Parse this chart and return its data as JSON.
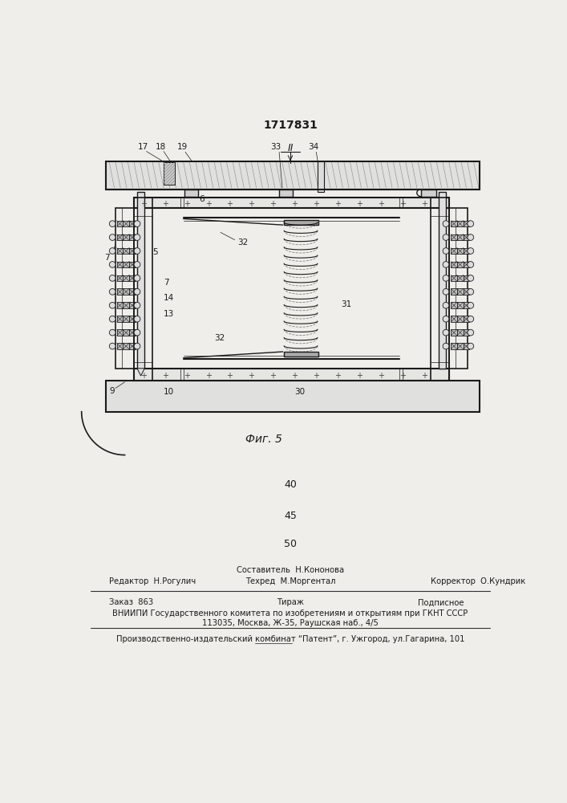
{
  "title": "1717831",
  "bg_color": "#f0eeea",
  "line_color": "#1a1a1a",
  "text_color": "#1a1a1a",
  "footer": {
    "sestavitel": "Составитель  Н.Кононова",
    "tehred": "Техред  М.Моргентал",
    "redaktor": "Редактор  Н.Рогулич",
    "korrektor": "Корректор  О.Кундрик",
    "zakaz": "Заказ  863",
    "tirazh": "Тираж",
    "podpisnoe": "Подписное",
    "vniipи": "ВНИИПИ Государственного комитета по изобретениям и открытиям при ГКНТ СССР",
    "address": "113035, Москва, Ж-35, Раушская наб., 4/5",
    "patent": "Производственно-издательский комбинат “Патент”, г. Ужгород, ул.Гагарина, 101"
  }
}
